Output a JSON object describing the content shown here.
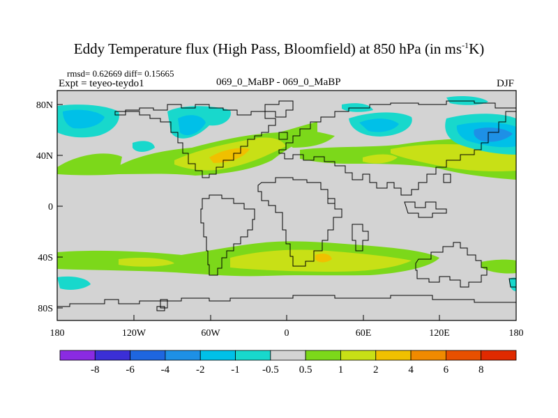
{
  "title": {
    "main": "Eddy Temperature flux (High Pass, Bloomfield) at 850 hPa (in ms",
    "sup": "-1",
    "tail": "K)"
  },
  "stats": {
    "rmsd_label": "rmsd= 0.62669",
    "diff_label": "diff= 0.15665"
  },
  "expt": "Expt = teyeo-teydo1",
  "center_label": "069_0_MaBP - 069_0_MaBP",
  "season": "DJF",
  "map": {
    "lat_ticks": [
      "80N",
      "40N",
      "0",
      "40S",
      "80S"
    ],
    "lon_ticks": [
      "180",
      "120W",
      "60W",
      "0",
      "60E",
      "120E",
      "180"
    ],
    "background_color": "#d3d3d3"
  },
  "colorbar": {
    "labels": [
      "-8",
      "-6",
      "-4",
      "-2",
      "-1",
      "-0.5",
      "0.5",
      "1",
      "2",
      "4",
      "6",
      "8"
    ],
    "colors": [
      "#8a2be2",
      "#3b2fd6",
      "#1e66e0",
      "#1e90e6",
      "#00c0e8",
      "#18d8cc",
      "#d3d3d3",
      "#7cd81a",
      "#c8e016",
      "#f0c000",
      "#f08a00",
      "#e85000",
      "#e02a00"
    ]
  }
}
